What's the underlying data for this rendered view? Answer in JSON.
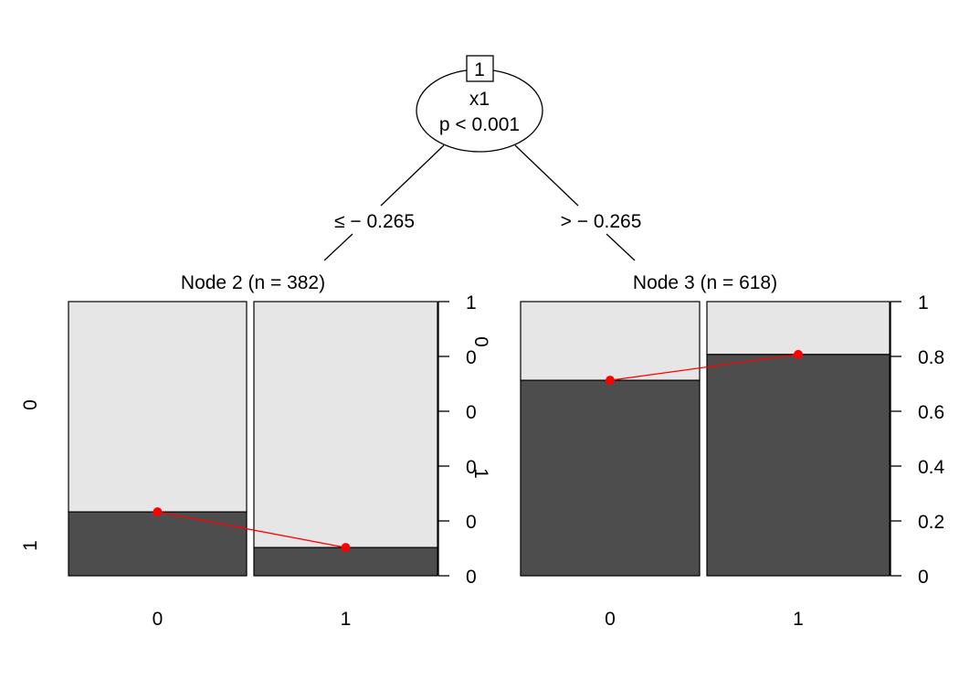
{
  "tree": {
    "root": {
      "id": "1",
      "variable": "x1",
      "pvalue": "p < 0.001"
    },
    "edges": [
      {
        "label": "≤ − 0.265"
      },
      {
        "label": "> − 0.265"
      }
    ]
  },
  "colors": {
    "light": "#e6e6e6",
    "dark": "#4d4d4d",
    "line": "#ff0000"
  },
  "chart_data": [
    {
      "type": "bar",
      "title": "Node 2 (n = 382)",
      "categories": [
        "0",
        "1"
      ],
      "series": [
        {
          "name": "1",
          "values": [
            0.233,
            0.103
          ]
        },
        {
          "name": "0",
          "values": [
            0.767,
            0.897
          ]
        }
      ],
      "ylim": [
        0,
        1
      ],
      "yticks": [
        "0",
        "0",
        "0",
        "0",
        "0",
        "1"
      ],
      "ylabels_left": [
        "0",
        "1"
      ],
      "ylabels_right": [
        "0",
        "1"
      ]
    },
    {
      "type": "bar",
      "title": "Node 3 (n = 618)",
      "categories": [
        "0",
        "1"
      ],
      "series": [
        {
          "name": "1",
          "values": [
            0.713,
            0.807
          ]
        },
        {
          "name": "0",
          "values": [
            0.287,
            0.193
          ]
        }
      ],
      "ylim": [
        0,
        1
      ],
      "yticks": [
        "0",
        "0.2",
        "0.4",
        "0.6",
        "0.8",
        "1"
      ]
    }
  ]
}
